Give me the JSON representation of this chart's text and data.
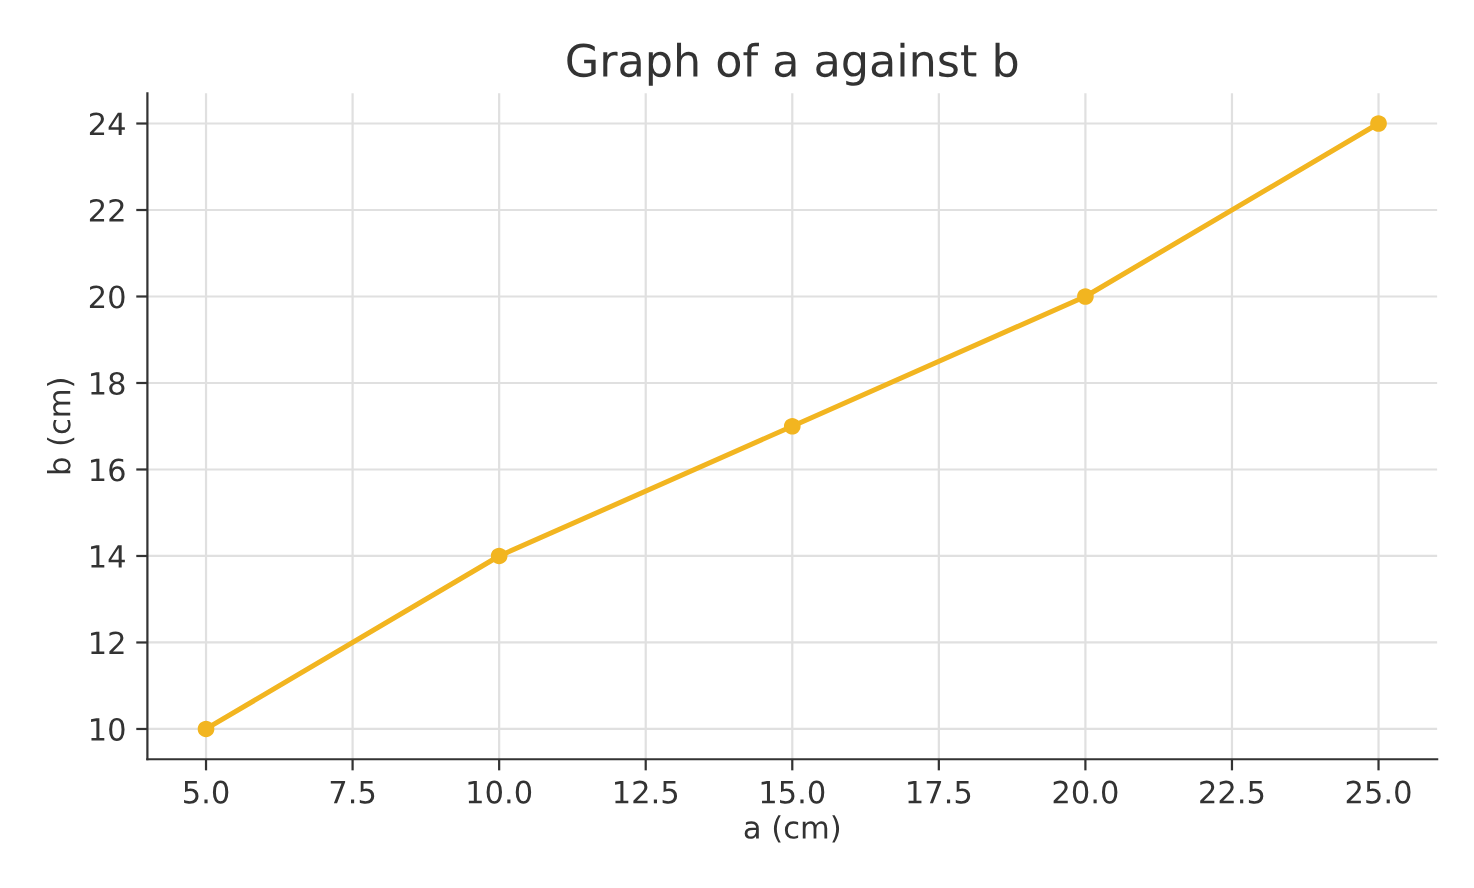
{
  "chart_data": {
    "type": "line",
    "title": "Graph of a against b",
    "xlabel": "a (cm)",
    "ylabel": "b (cm)",
    "x": [
      5,
      10,
      15,
      20,
      25
    ],
    "series": [
      {
        "color": "#f2b520",
        "values": [
          10,
          14,
          17,
          20,
          24
        ]
      }
    ],
    "xlim": [
      4,
      26
    ],
    "ylim": [
      9.3,
      24.7
    ],
    "xticks": [
      {
        "value": 5,
        "label": "5.0"
      },
      {
        "value": 7.5,
        "label": "7.5"
      },
      {
        "value": 10,
        "label": "10.0"
      },
      {
        "value": 12.5,
        "label": "12.5"
      },
      {
        "value": 15,
        "label": "15.0"
      },
      {
        "value": 17.5,
        "label": "17.5"
      },
      {
        "value": 20,
        "label": "20.0"
      },
      {
        "value": 22.5,
        "label": "22.5"
      },
      {
        "value": 25,
        "label": "25.0"
      }
    ],
    "yticks": [
      10,
      12,
      14,
      16,
      18,
      20,
      22,
      24
    ],
    "grid": true,
    "marker": "circle",
    "line_style": "solid"
  }
}
